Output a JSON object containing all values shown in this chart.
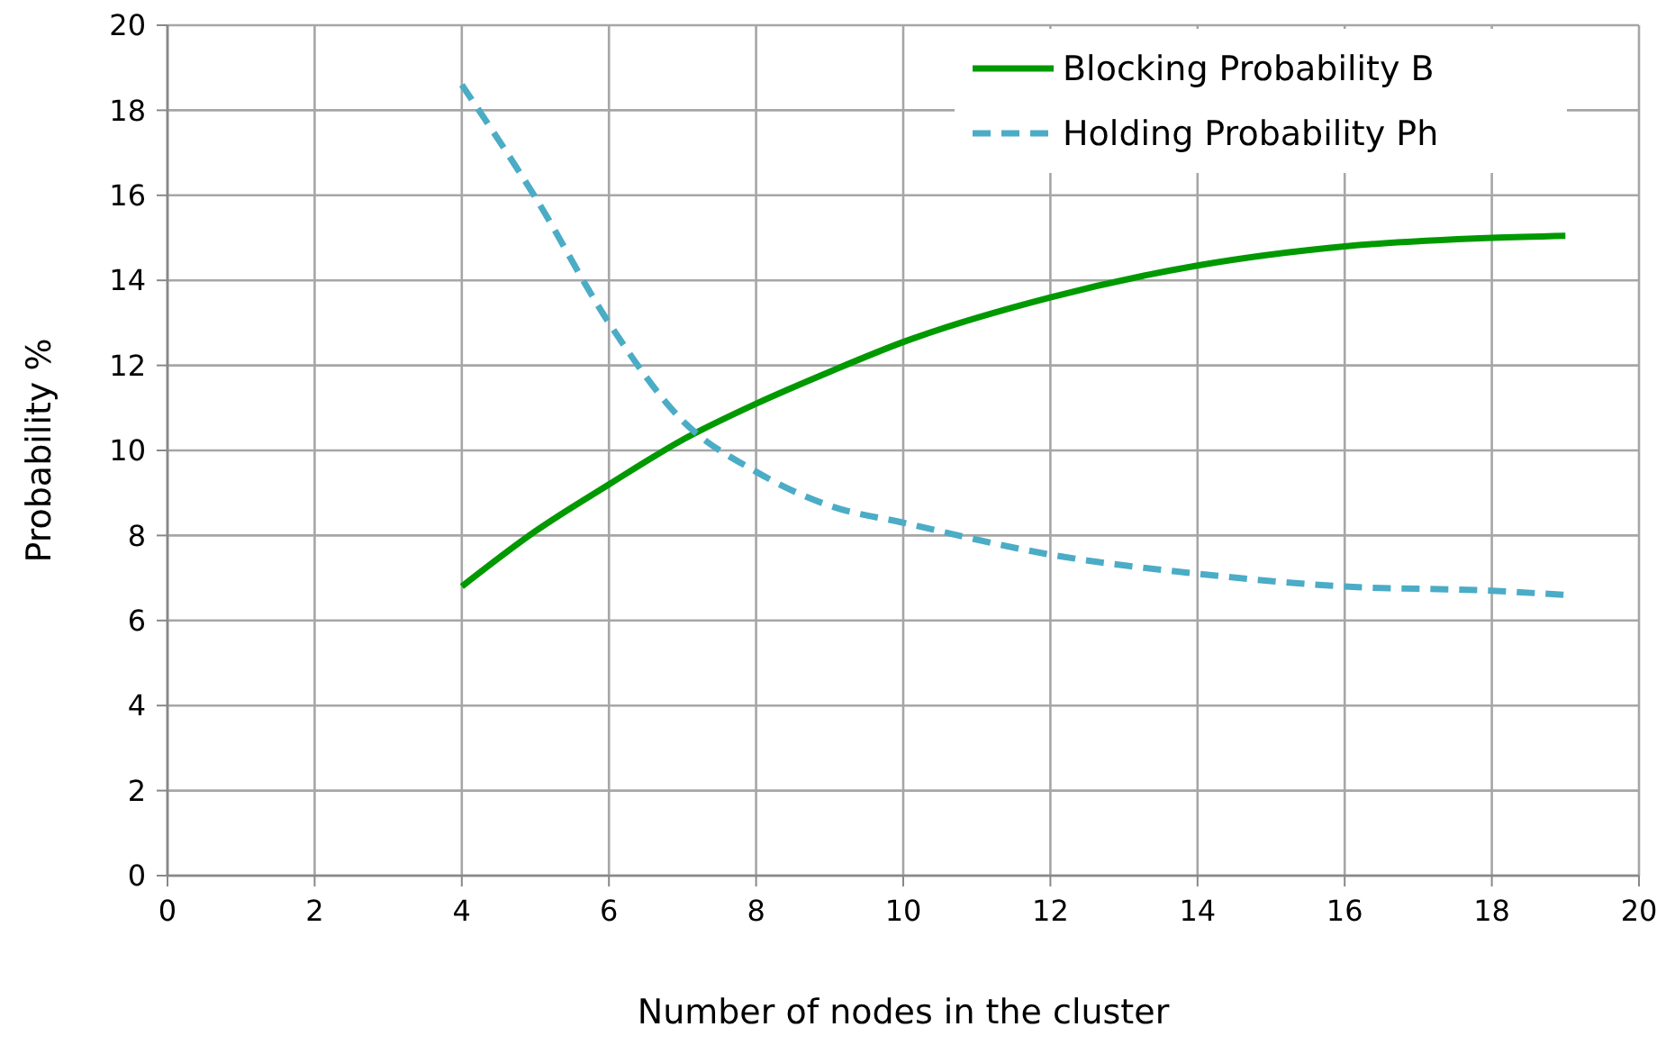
{
  "chart_data": {
    "type": "line",
    "xlabel": "Number of nodes in the cluster",
    "ylabel": "Probability %",
    "x": [
      4,
      5,
      6,
      7,
      8,
      9,
      10,
      12,
      14,
      16,
      18,
      19
    ],
    "series": [
      {
        "name": "Blocking Probability B",
        "color": "#009900",
        "line_style": "solid",
        "values": [
          6.8,
          8.1,
          9.2,
          10.25,
          11.1,
          11.85,
          12.55,
          13.6,
          14.35,
          14.8,
          15.0,
          15.05
        ]
      },
      {
        "name": "Holding Probability Ph",
        "color": "#4bacc6",
        "line_style": "dashed",
        "values": [
          18.6,
          15.95,
          13.0,
          10.7,
          9.5,
          8.7,
          8.3,
          7.55,
          7.1,
          6.8,
          6.7,
          6.6
        ]
      }
    ],
    "xlim": [
      0,
      20
    ],
    "xticks": [
      0,
      2,
      4,
      6,
      8,
      10,
      12,
      14,
      16,
      18,
      20
    ],
    "ylim": [
      0,
      20
    ],
    "yticks": [
      0,
      2,
      4,
      6,
      8,
      10,
      12,
      14,
      16,
      18,
      20
    ],
    "grid": true,
    "legend": "top right",
    "marker": "none"
  }
}
